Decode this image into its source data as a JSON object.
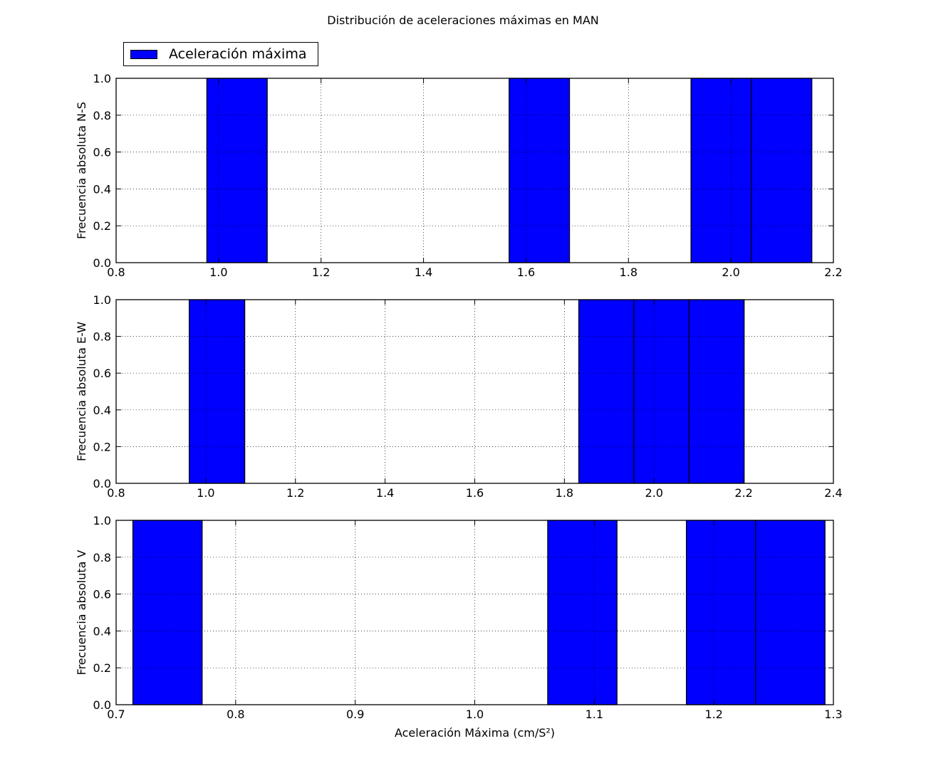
{
  "figure": {
    "title": "Distribución de aceleraciones máximas en MAN"
  },
  "legend": {
    "label": "Aceleración máxima",
    "color": "#0000ff",
    "placement": "upper-left"
  },
  "chart_data": [
    {
      "type": "bar",
      "id": "ns",
      "ylabel": "Frecuencia absoluta N-S",
      "xlabel": "",
      "xlim": [
        0.8,
        2.2
      ],
      "ylim": [
        0.0,
        1.0
      ],
      "xticks": [
        "0.8",
        "1.0",
        "1.2",
        "1.4",
        "1.6",
        "1.8",
        "2.0",
        "2.2"
      ],
      "yticks": [
        "0.0",
        "0.2",
        "0.4",
        "0.6",
        "0.8",
        "1.0"
      ],
      "grid": true,
      "bar_color": "#0000ff",
      "bars": [
        {
          "x0": 0.977,
          "x1": 1.095,
          "value": 1.0
        },
        {
          "x0": 1.567,
          "x1": 1.685,
          "value": 1.0
        },
        {
          "x0": 1.922,
          "x1": 2.04,
          "value": 1.0
        },
        {
          "x0": 2.04,
          "x1": 2.158,
          "value": 1.0
        }
      ]
    },
    {
      "type": "bar",
      "id": "ew",
      "ylabel": "Frecuencia absoluta E-W",
      "xlabel": "",
      "xlim": [
        0.8,
        2.4
      ],
      "ylim": [
        0.0,
        1.0
      ],
      "xticks": [
        "0.8",
        "1.0",
        "1.2",
        "1.4",
        "1.6",
        "1.8",
        "2.0",
        "2.2",
        "2.4"
      ],
      "yticks": [
        "0.0",
        "0.2",
        "0.4",
        "0.6",
        "0.8",
        "1.0"
      ],
      "grid": true,
      "bar_color": "#0000ff",
      "bars": [
        {
          "x0": 0.963,
          "x1": 1.087,
          "value": 1.0
        },
        {
          "x0": 1.832,
          "x1": 1.955,
          "value": 1.0
        },
        {
          "x0": 1.955,
          "x1": 2.078,
          "value": 1.0
        },
        {
          "x0": 2.078,
          "x1": 2.201,
          "value": 1.0
        }
      ]
    },
    {
      "type": "bar",
      "id": "v",
      "ylabel": "Frecuencia absoluta V",
      "xlabel": "Aceleración Máxima (cm/S²)",
      "xlim": [
        0.7,
        1.3
      ],
      "ylim": [
        0.0,
        1.0
      ],
      "xticks": [
        "0.7",
        "0.8",
        "0.9",
        "1.0",
        "1.1",
        "1.2",
        "1.3"
      ],
      "yticks": [
        "0.0",
        "0.2",
        "0.4",
        "0.6",
        "0.8",
        "1.0"
      ],
      "grid": true,
      "bar_color": "#0000ff",
      "bars": [
        {
          "x0": 0.714,
          "x1": 0.772,
          "value": 1.0
        },
        {
          "x0": 1.061,
          "x1": 1.119,
          "value": 1.0
        },
        {
          "x0": 1.177,
          "x1": 1.235,
          "value": 1.0
        },
        {
          "x0": 1.235,
          "x1": 1.293,
          "value": 1.0
        }
      ]
    }
  ]
}
